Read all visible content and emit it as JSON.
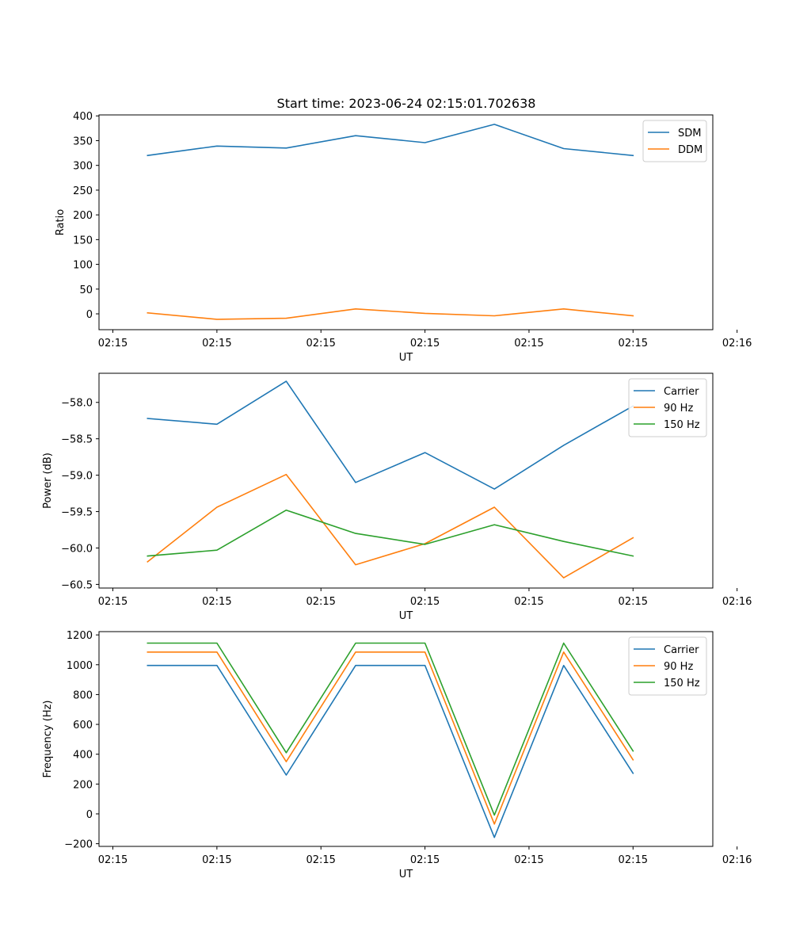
{
  "figure_title": "Start time: 2023-06-24 02:15:01.702638",
  "chart_data": [
    {
      "type": "line",
      "title": "Start time: 2023-06-24 02:15:01.702638",
      "xlabel": "UT",
      "ylabel": "Ratio",
      "x": [
        1,
        2,
        3,
        4,
        5,
        6,
        7,
        8
      ],
      "xlim": [
        0.3,
        9.15
      ],
      "x_ticks": [
        0.5,
        2.0,
        3.5,
        5.0,
        6.5,
        8.0,
        9.5
      ],
      "x_tick_labels": [
        "02:15",
        "02:15",
        "02:15",
        "02:15",
        "02:15",
        "02:15",
        "02:16"
      ],
      "ylim": [
        -32,
        402
      ],
      "y_ticks": [
        0,
        50,
        100,
        150,
        200,
        250,
        300,
        350,
        400
      ],
      "legend_position": "top-right",
      "grid": false,
      "series": [
        {
          "name": "SDM",
          "color": "#1f77b4",
          "values": [
            320,
            339,
            335,
            360,
            346,
            383,
            334,
            320
          ]
        },
        {
          "name": "DDM",
          "color": "#ff7f0e",
          "values": [
            2,
            -11,
            -9,
            10,
            1,
            -4,
            10,
            -4
          ]
        }
      ]
    },
    {
      "type": "line",
      "title": "",
      "xlabel": "UT",
      "ylabel": "Power (dB)",
      "x": [
        1,
        2,
        3,
        4,
        5,
        6,
        7,
        8
      ],
      "xlim": [
        0.3,
        9.15
      ],
      "x_ticks": [
        0.5,
        2.0,
        3.5,
        5.0,
        6.5,
        8.0,
        9.5
      ],
      "x_tick_labels": [
        "02:15",
        "02:15",
        "02:15",
        "02:15",
        "02:15",
        "02:15",
        "02:16"
      ],
      "ylim": [
        -60.55,
        -57.6
      ],
      "y_ticks": [
        -60.5,
        -60.0,
        -59.5,
        -59.0,
        -58.5,
        -58.0
      ],
      "y_tick_labels": [
        "−60.5",
        "−60.0",
        "−59.5",
        "−59.0",
        "−58.5",
        "−58.0"
      ],
      "legend_position": "top-right",
      "grid": false,
      "series": [
        {
          "name": "Carrier",
          "color": "#1f77b4",
          "values": [
            -58.22,
            -58.3,
            -57.71,
            -59.1,
            -58.69,
            -59.19,
            -58.59,
            -58.05
          ]
        },
        {
          "name": "90 Hz",
          "color": "#ff7f0e",
          "values": [
            -60.19,
            -59.44,
            -58.99,
            -60.23,
            -59.94,
            -59.44,
            -60.41,
            -59.86
          ]
        },
        {
          "name": "150 Hz",
          "color": "#2ca02c",
          "values": [
            -60.11,
            -60.03,
            -59.48,
            -59.8,
            -59.95,
            -59.68,
            -59.91,
            -60.11
          ]
        }
      ]
    },
    {
      "type": "line",
      "title": "",
      "xlabel": "UT",
      "ylabel": "Frequency (Hz)",
      "x": [
        1,
        2,
        3,
        4,
        5,
        6,
        7,
        8
      ],
      "xlim": [
        0.3,
        9.15
      ],
      "x_ticks": [
        0.5,
        2.0,
        3.5,
        5.0,
        6.5,
        8.0,
        9.5
      ],
      "x_tick_labels": [
        "02:15",
        "02:15",
        "02:15",
        "02:15",
        "02:15",
        "02:15",
        "02:16"
      ],
      "ylim": [
        -218,
        1222
      ],
      "y_ticks": [
        -200,
        0,
        200,
        400,
        600,
        800,
        1000,
        1200
      ],
      "y_tick_labels": [
        "−200",
        "0",
        "200",
        "400",
        "600",
        "800",
        "1000",
        "1200"
      ],
      "legend_position": "top-right",
      "grid": false,
      "series": [
        {
          "name": "Carrier",
          "color": "#1f77b4",
          "values": [
            995,
            995,
            260,
            995,
            995,
            -158,
            995,
            272
          ]
        },
        {
          "name": "90 Hz",
          "color": "#ff7f0e",
          "values": [
            1085,
            1085,
            350,
            1085,
            1085,
            -68,
            1085,
            362
          ]
        },
        {
          "name": "150 Hz",
          "color": "#2ca02c",
          "values": [
            1145,
            1145,
            410,
            1145,
            1145,
            -8,
            1145,
            422
          ]
        }
      ]
    }
  ]
}
